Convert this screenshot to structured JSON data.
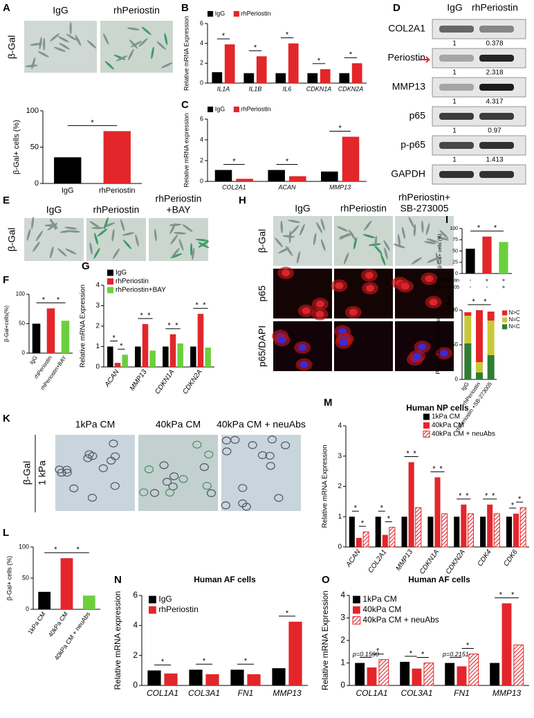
{
  "panels": {
    "A": {
      "letter": "A",
      "columns": [
        "IgG",
        "rhPeriostin"
      ],
      "row": "β-Gal"
    },
    "D": {
      "letter": "D",
      "columns": [
        "IgG",
        "rhPeriostin"
      ],
      "rows": [
        {
          "label": "COL2A1",
          "values": [
            1,
            0.378
          ]
        },
        {
          "label": "Periostin",
          "values": [
            1,
            2.318
          ]
        },
        {
          "label": "MMP13",
          "values": [
            1,
            4.317
          ]
        },
        {
          "label": "p65",
          "values": [
            1,
            0.97
          ]
        },
        {
          "label": "p-p65",
          "values": [
            1,
            1.413
          ]
        },
        {
          "label": "GAPDH"
        }
      ]
    },
    "E": {
      "letter": "E",
      "columns": [
        [
          "IgG"
        ],
        [
          "rhPeriostin"
        ],
        [
          "rhPeriostin",
          "+BAY"
        ]
      ],
      "row": "β-Gal"
    },
    "H": {
      "letter": "H",
      "columns": [
        [
          "IgG"
        ],
        [
          "rhPeriostin"
        ],
        [
          "rhPeriostin+",
          "SB-273005"
        ]
      ],
      "rows": [
        "β-Gal",
        "p65",
        "p65/DAPI"
      ]
    },
    "K": {
      "letter": "K",
      "columns": [
        "1kPa CM",
        "40kPa CM",
        "40kPa CM + neuAbs"
      ],
      "row": "β-Gal",
      "sub": "1 kPa"
    }
  },
  "chart_data": [
    {
      "type": "bar",
      "ylabel": "β-Gal+ cells (%)",
      "categories": [
        "IgG",
        "rhPeriostin"
      ],
      "values": [
        36,
        72
      ],
      "colors": [
        "#000000",
        "#e3262a"
      ],
      "ylim": [
        0,
        100
      ],
      "yticks": [
        0,
        50,
        100
      ],
      "significance": [
        "*"
      ]
    },
    {
      "type": "bar",
      "panel": "B",
      "ylabel": "Relative mRNA Expression",
      "categories": [
        "IL1A",
        "IL1B",
        "IL6",
        "CDKN1A",
        "CDKN2A"
      ],
      "series": [
        {
          "name": "IgG",
          "color": "#000000",
          "values": [
            1.1,
            1.0,
            1.0,
            1.0,
            1.0
          ]
        },
        {
          "name": "rhPeriostin",
          "color": "#e3262a",
          "values": [
            3.9,
            2.7,
            4.0,
            1.4,
            2.0
          ]
        }
      ],
      "ylim": [
        0,
        6
      ],
      "yticks": [
        0,
        2,
        4,
        6
      ],
      "significance": [
        "*",
        "*",
        "*",
        "*",
        "*"
      ]
    },
    {
      "type": "bar",
      "panel": "C",
      "ylabel": "Relative mRNA expression",
      "categories": [
        "COL2A1",
        "ACAN",
        "MMP13"
      ],
      "series": [
        {
          "name": "IgG",
          "color": "#000000",
          "values": [
            1.1,
            1.1,
            0.95
          ]
        },
        {
          "name": "rhPeriostin",
          "color": "#e3262a",
          "values": [
            0.25,
            0.5,
            4.3
          ]
        }
      ],
      "ylim": [
        0,
        6
      ],
      "yticks": [
        0,
        2,
        4,
        6
      ],
      "significance": [
        "*",
        "*",
        "*"
      ]
    },
    {
      "type": "bar",
      "panel": "F",
      "ylabel": "β-Gal+cells(%)",
      "categories": [
        "IgG",
        "rhPeriostin",
        "rhPeriostin+BAY"
      ],
      "values": [
        50,
        76,
        55
      ],
      "colors": [
        "#000000",
        "#e3262a",
        "#6ccf3f"
      ],
      "ylim": [
        0,
        100
      ],
      "yticks": [
        0,
        50,
        100
      ],
      "significance": [
        "*",
        "*"
      ]
    },
    {
      "type": "bar",
      "panel": "G",
      "ylabel": "Relative mRNA Expression",
      "categories": [
        "ACAN",
        "MMP13",
        "CDKN1A",
        "CDKN2A"
      ],
      "series": [
        {
          "name": "IgG",
          "color": "#000000",
          "values": [
            1.0,
            1.0,
            1.0,
            1.0
          ]
        },
        {
          "name": "rhPeriostin",
          "color": "#e3262a",
          "values": [
            0.2,
            2.1,
            1.6,
            2.6
          ]
        },
        {
          "name": "rhPeriostin+BAY",
          "color": "#6ccf3f",
          "values": [
            0.6,
            0.8,
            1.15,
            0.95
          ]
        }
      ],
      "ylim": [
        0,
        4
      ],
      "yticks": [
        0,
        1,
        2,
        3,
        4
      ],
      "significance": [
        "*",
        "*",
        "*",
        "*",
        "*",
        "*",
        "*",
        "*"
      ]
    },
    {
      "type": "bar",
      "panel": "I",
      "ylabel": "β-Gal+ cells (%)",
      "categories": [
        null,
        null,
        null
      ],
      "values": [
        55,
        82,
        70
      ],
      "colors": [
        "#000000",
        "#e3262a",
        "#6ccf3f"
      ],
      "ylim": [
        0,
        100
      ],
      "yticks": [
        0,
        25,
        50,
        75,
        100
      ],
      "significance": [
        "*",
        "*"
      ],
      "condition_table": {
        "rows": [
          {
            "label": "rhPeriostin",
            "values": [
              "-",
              "+",
              "+"
            ]
          },
          {
            "label": "SB-273005",
            "values": [
              "-",
              "-",
              "+"
            ]
          }
        ]
      }
    },
    {
      "type": "bar",
      "panel": "J",
      "stacked": true,
      "ylabel": "Percent cellular location",
      "categories": [
        "IgG",
        "rhPeriostin",
        "rhPeriostin +SB-273005"
      ],
      "series": [
        {
          "name": "N<C",
          "color": "#2e7d32",
          "values": [
            52,
            10,
            35
          ]
        },
        {
          "name": "N=C",
          "color": "#c8c93a",
          "values": [
            40,
            15,
            50
          ]
        },
        {
          "name": "N>C",
          "color": "#e3262a",
          "values": [
            5,
            75,
            13
          ]
        }
      ],
      "ylim": [
        0,
        100
      ],
      "yticks": [
        0,
        50,
        100
      ],
      "significance": [
        "*",
        "*"
      ]
    },
    {
      "type": "bar",
      "panel": "L",
      "ylabel": "β-Gal+ cells (%)",
      "categories": [
        "1kPa CM",
        "40kPa CM",
        "40kPa CM + neuAbs"
      ],
      "values": [
        28,
        82,
        22
      ],
      "colors": [
        "#000000",
        "#e3262a",
        "#6ccf3f"
      ],
      "ylim": [
        0,
        100
      ],
      "yticks": [
        0,
        50,
        100
      ],
      "significance": [
        "*",
        "*"
      ]
    },
    {
      "type": "bar",
      "panel": "M",
      "title": "Human NP cells",
      "ylabel": "Relative mRNA Expression",
      "categories": [
        "ACAN",
        "COL2A1",
        "MMP13",
        "CDKN1A",
        "CDKN2A",
        "CDK4",
        "CDK6"
      ],
      "series": [
        {
          "name": "1kPa CM",
          "color": "#000000",
          "values": [
            1.0,
            1.0,
            1.0,
            1.0,
            1.0,
            1.0,
            1.0
          ]
        },
        {
          "name": "40kPa CM",
          "color": "#e3262a",
          "values": [
            0.3,
            0.4,
            2.8,
            2.3,
            1.4,
            1.4,
            1.1
          ]
        },
        {
          "name": "40kPa CM + neuAbs",
          "color": "#e3262a",
          "hatch": true,
          "values": [
            0.5,
            0.65,
            1.3,
            1.1,
            1.1,
            1.1,
            1.3
          ]
        }
      ],
      "ylim": [
        0,
        4
      ],
      "yticks": [
        0,
        1,
        2,
        3,
        4
      ],
      "significance": [
        "*",
        "*",
        "*",
        "*",
        "*",
        "*",
        "*",
        "*",
        "*",
        "*",
        "*",
        "*",
        "*",
        "*"
      ]
    },
    {
      "type": "bar",
      "panel": "N",
      "title": "Human AF cells",
      "ylabel": "Relative mRNA expression",
      "categories": [
        "COL1A1",
        "COL3A1",
        "FN1",
        "MMP13"
      ],
      "series": [
        {
          "name": "IgG",
          "color": "#000000",
          "values": [
            1.0,
            1.05,
            1.05,
            1.15
          ]
        },
        {
          "name": "rhPeriostin",
          "color": "#e3262a",
          "values": [
            0.8,
            0.75,
            0.75,
            4.25
          ]
        }
      ],
      "ylim": [
        0,
        6
      ],
      "yticks": [
        0,
        2,
        4,
        6
      ],
      "significance": [
        "*",
        "*",
        "*",
        "*"
      ]
    },
    {
      "type": "bar",
      "panel": "O",
      "title": "Human AF cells",
      "ylabel": "Relative mRNA Expression",
      "categories": [
        "COL1A1",
        "COL3A1",
        "FN1",
        "MMP13"
      ],
      "series": [
        {
          "name": "1kPa CM",
          "color": "#000000",
          "values": [
            1.0,
            1.05,
            1.0,
            1.0
          ]
        },
        {
          "name": "40kPa CM",
          "color": "#e3262a",
          "values": [
            0.8,
            0.75,
            0.85,
            3.65
          ]
        },
        {
          "name": "40kPa CM + neuAbs",
          "color": "#e3262a",
          "hatch": true,
          "values": [
            1.15,
            1.0,
            1.4,
            1.8
          ]
        }
      ],
      "ylim": [
        0,
        4
      ],
      "yticks": [
        0,
        1,
        2,
        3,
        4
      ],
      "significance": [
        "p=0.1590",
        "*",
        "*",
        "*",
        "p=0.2151",
        "*",
        "*",
        "*"
      ]
    }
  ]
}
